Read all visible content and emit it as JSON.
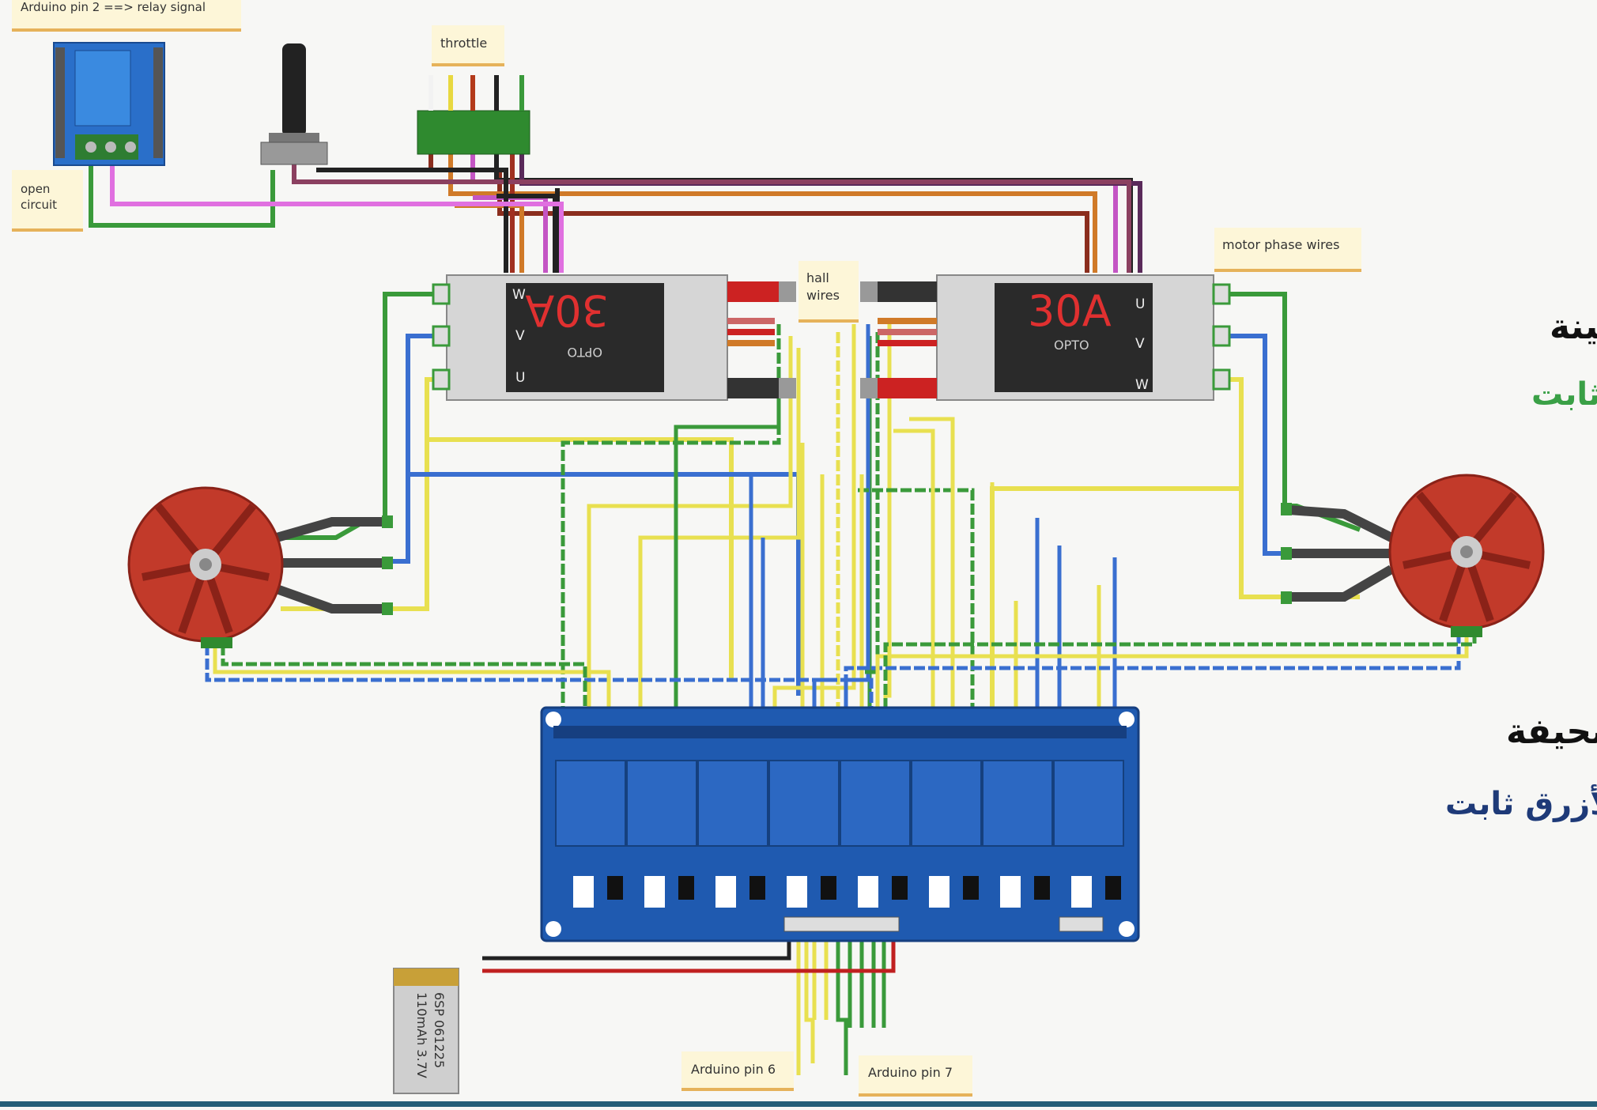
{
  "notes": {
    "relay_signal": "Arduino pin 2 ==> relay signal",
    "open_circuit_1": "open",
    "open_circuit_2": "circuit",
    "throttle": "throttle",
    "hall_1": "hall",
    "hall_2": "wires",
    "motor_phase": "motor phase wires",
    "pin6": "Arduino pin 6",
    "pin7": "Arduino pin 7"
  },
  "esc_left": {
    "rating": "30A",
    "brand": "OPTO",
    "phase_labels": [
      "W",
      "V",
      "U"
    ]
  },
  "esc_right": {
    "rating": "30A",
    "brand": "OPTO",
    "phase_labels": [
      "U",
      "V",
      "W"
    ]
  },
  "battery": {
    "label_1": "6SP 061225",
    "label_2": "110mAh 3.7V"
  },
  "arabic": {
    "thick_wires": "الأسلاك المتينة",
    "green_fixed": "الأخضر ثابت",
    "thin_wires": "الأسلاك النحيفة",
    "blue_fixed": "الأزرق ثابت"
  },
  "colors": {
    "green_wire": "#3a9a3a",
    "blue_wire": "#3a6fd0",
    "yellow_wire": "#e8e050",
    "board_blue": "#1f5ab0",
    "motor_red": "#c23a2a",
    "arabic_green": "#3aa046",
    "arabic_navy": "#1e3a78"
  }
}
